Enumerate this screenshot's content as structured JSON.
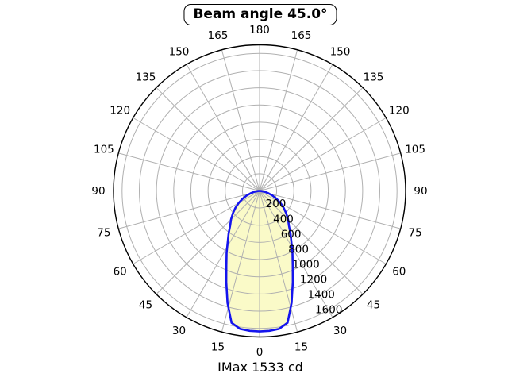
{
  "title": {
    "label": "Beam angle 45.0°"
  },
  "footer": {
    "label": "IMax 1533 cd"
  },
  "chart_data": {
    "type": "polar",
    "subtype": "photometric-beam-diagram",
    "title": "Beam angle 45.0°",
    "annotation": "IMax 1533 cd",
    "imax_cd": 1533,
    "beam_angle_deg": 45.0,
    "angle_ticks_deg": [
      0,
      15,
      30,
      45,
      60,
      75,
      90,
      105,
      120,
      135,
      150,
      165,
      180
    ],
    "angle_layout": "0 at bottom, 180 at top, labels mirrored on left and right sides",
    "radial_ticks_cd": [
      200,
      400,
      600,
      800,
      1000,
      1200,
      1400,
      1600
    ],
    "radial_axis_outer_cd": 1700,
    "radial_label_angle_deg": 22.5,
    "grid": true,
    "beam_profile": [
      {
        "angle_deg": 0,
        "cd": 1533
      },
      {
        "angle_deg": 4,
        "cd": 1530
      },
      {
        "angle_deg": 8,
        "cd": 1520
      },
      {
        "angle_deg": 12,
        "cd": 1470
      },
      {
        "angle_deg": 16,
        "cd": 1270
      },
      {
        "angle_deg": 20,
        "cd": 1060
      },
      {
        "angle_deg": 24,
        "cd": 890
      },
      {
        "angle_deg": 28,
        "cd": 766
      },
      {
        "angle_deg": 32,
        "cd": 655
      },
      {
        "angle_deg": 36,
        "cd": 575
      },
      {
        "angle_deg": 40,
        "cd": 500
      },
      {
        "angle_deg": 45,
        "cd": 440
      },
      {
        "angle_deg": 50,
        "cd": 380
      },
      {
        "angle_deg": 55,
        "cd": 320
      },
      {
        "angle_deg": 60,
        "cd": 262
      },
      {
        "angle_deg": 65,
        "cd": 205
      },
      {
        "angle_deg": 70,
        "cd": 150
      },
      {
        "angle_deg": 75,
        "cd": 100
      },
      {
        "angle_deg": 80,
        "cd": 55
      },
      {
        "angle_deg": 85,
        "cd": 18
      },
      {
        "angle_deg": 90,
        "cd": 0
      }
    ],
    "colors": {
      "beam_fill": "#fafac8",
      "beam_stroke": "#1515ee",
      "grid": "#b0b0b0",
      "spine": "#000000",
      "text": "#000000",
      "background": "#ffffff"
    }
  }
}
